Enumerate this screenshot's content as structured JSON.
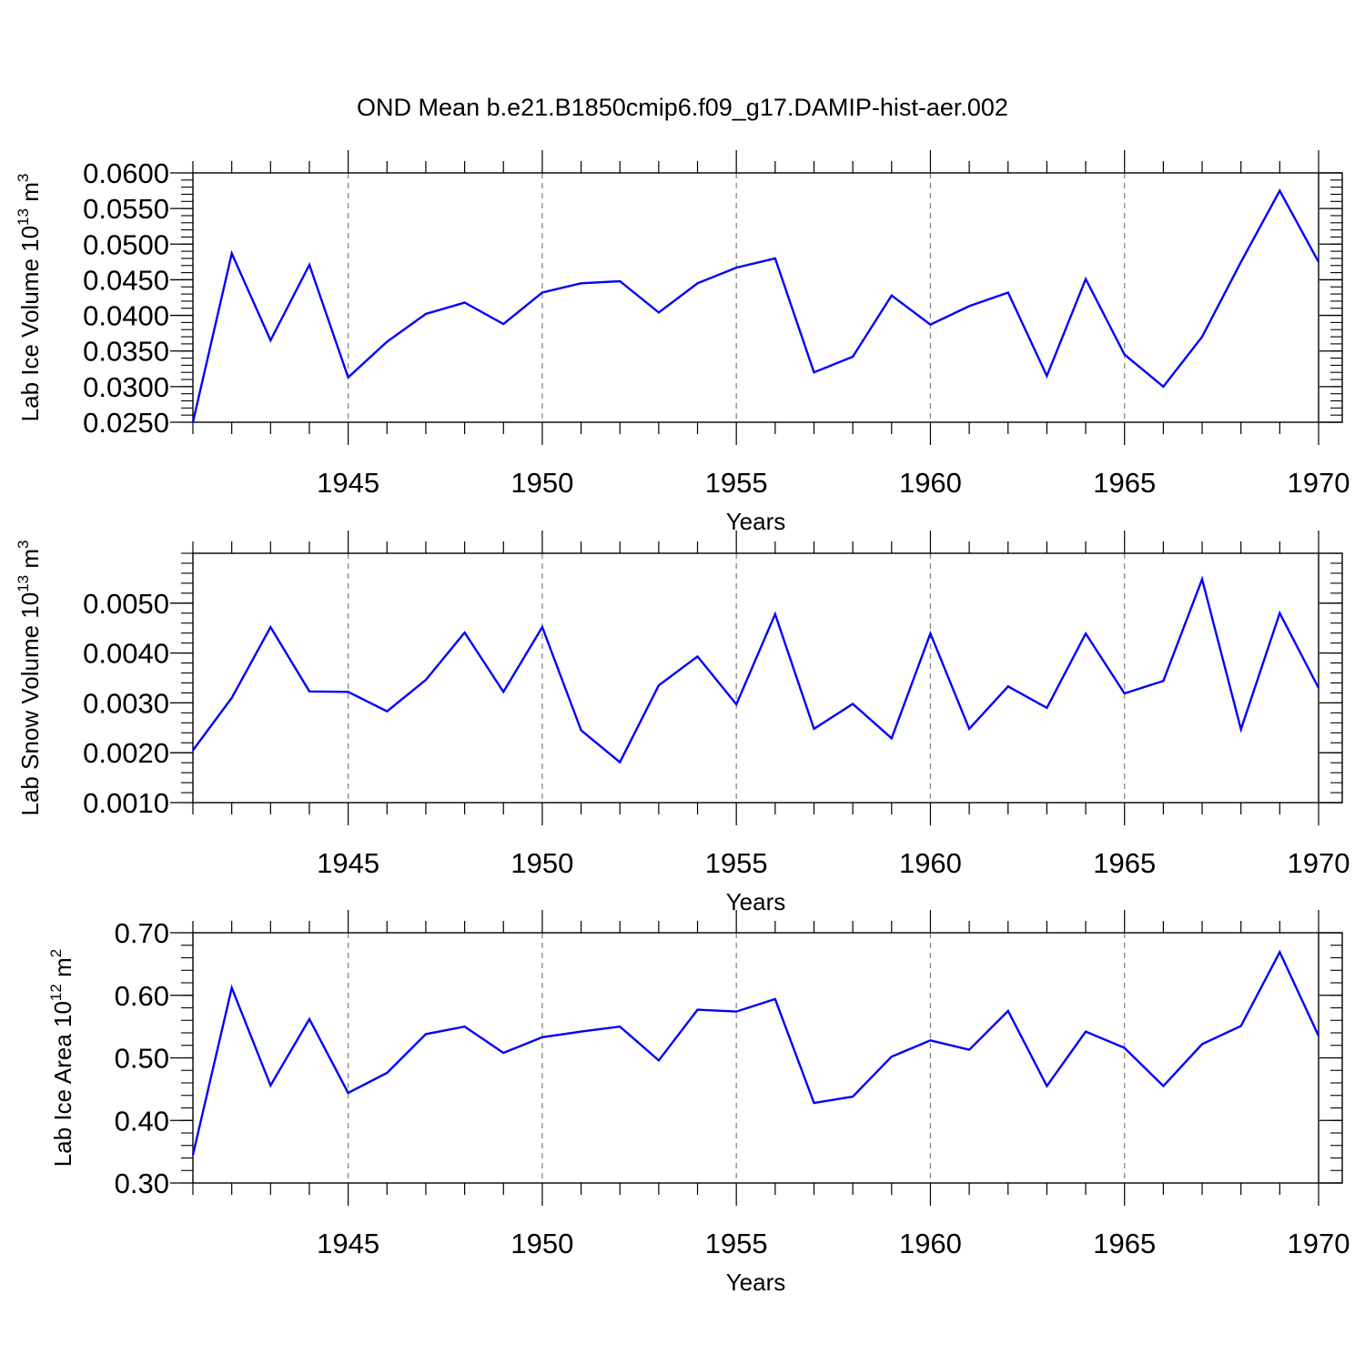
{
  "figure_title": "OND Mean b.e21.B1850cmip6.f09_g17.DAMIP-hist-aer.002",
  "line_color": "#0000ff",
  "chart_data": [
    {
      "type": "line",
      "ylabel": "Lab Ice Volume 10",
      "ylabel_exp": "13",
      "ylabel_unit": " m",
      "ylabel_unit_exp": "3",
      "xlabel": "Years",
      "xlim": [
        1941,
        1970
      ],
      "ylim": [
        0.025,
        0.06
      ],
      "x_ticks": [
        "1945",
        "1950",
        "1955",
        "1960",
        "1965",
        "1970"
      ],
      "y_ticks": [
        "0.0250",
        "0.0300",
        "0.0350",
        "0.0400",
        "0.0450",
        "0.0500",
        "0.0550",
        "0.0600"
      ],
      "grid": "vertical dashed at x ticks",
      "x": [
        1941,
        1942,
        1943,
        1944,
        1945,
        1946,
        1947,
        1948,
        1949,
        1950,
        1951,
        1952,
        1953,
        1954,
        1955,
        1956,
        1957,
        1958,
        1959,
        1960,
        1961,
        1962,
        1963,
        1964,
        1965,
        1966,
        1967,
        1968,
        1969,
        1970
      ],
      "series": [
        {
          "name": "Lab Ice Volume",
          "values": [
            0.025,
            0.0487,
            0.0365,
            0.0471,
            0.0313,
            0.0363,
            0.0402,
            0.0418,
            0.0388,
            0.0432,
            0.0445,
            0.0448,
            0.0404,
            0.0445,
            0.0467,
            0.048,
            0.032,
            0.0342,
            0.0428,
            0.0387,
            0.0413,
            0.0432,
            0.0315,
            0.0451,
            0.0345,
            0.03,
            0.037,
            0.0475,
            0.0575,
            0.0475
          ]
        }
      ]
    },
    {
      "type": "line",
      "ylabel": "Lab Snow Volume 10",
      "ylabel_exp": "13",
      "ylabel_unit": " m",
      "ylabel_unit_exp": "3",
      "xlabel": "Years",
      "xlim": [
        1941,
        1970
      ],
      "ylim": [
        0.001,
        0.006
      ],
      "x_ticks": [
        "1945",
        "1950",
        "1955",
        "1960",
        "1965",
        "1970"
      ],
      "y_ticks": [
        "0.0010",
        "0.0020",
        "0.0030",
        "0.0040",
        "0.0050"
      ],
      "grid": "vertical dashed at x ticks",
      "x": [
        1941,
        1942,
        1943,
        1944,
        1945,
        1946,
        1947,
        1948,
        1949,
        1950,
        1951,
        1952,
        1953,
        1954,
        1955,
        1956,
        1957,
        1958,
        1959,
        1960,
        1961,
        1962,
        1963,
        1964,
        1965,
        1966,
        1967,
        1968,
        1969,
        1970
      ],
      "series": [
        {
          "name": "Lab Snow Volume",
          "values": [
            0.00205,
            0.0031,
            0.00452,
            0.00323,
            0.00322,
            0.00283,
            0.00346,
            0.00441,
            0.00322,
            0.00452,
            0.00245,
            0.00181,
            0.00335,
            0.00393,
            0.00297,
            0.00478,
            0.00248,
            0.00298,
            0.00229,
            0.00439,
            0.00248,
            0.00333,
            0.0029,
            0.00439,
            0.00319,
            0.00344,
            0.00548,
            0.00247,
            0.0048,
            0.0033
          ]
        }
      ]
    },
    {
      "type": "line",
      "ylabel": "Lab Ice Area 10",
      "ylabel_exp": "12",
      "ylabel_unit": " m",
      "ylabel_unit_exp": "2",
      "xlabel": "Years",
      "xlim": [
        1941,
        1970
      ],
      "ylim": [
        0.3,
        0.7
      ],
      "x_ticks": [
        "1945",
        "1950",
        "1955",
        "1960",
        "1965",
        "1970"
      ],
      "y_ticks": [
        "0.30",
        "0.40",
        "0.50",
        "0.60",
        "0.70"
      ],
      "grid": "vertical dashed at x ticks",
      "x": [
        1941,
        1942,
        1943,
        1944,
        1945,
        1946,
        1947,
        1948,
        1949,
        1950,
        1951,
        1952,
        1953,
        1954,
        1955,
        1956,
        1957,
        1958,
        1959,
        1960,
        1961,
        1962,
        1963,
        1964,
        1965,
        1966,
        1967,
        1968,
        1969,
        1970
      ],
      "series": [
        {
          "name": "Lab Ice Area",
          "values": [
            0.345,
            0.612,
            0.456,
            0.562,
            0.444,
            0.476,
            0.538,
            0.55,
            0.508,
            0.533,
            0.542,
            0.55,
            0.496,
            0.577,
            0.574,
            0.594,
            0.428,
            0.438,
            0.502,
            0.528,
            0.513,
            0.575,
            0.455,
            0.542,
            0.516,
            0.455,
            0.522,
            0.551,
            0.669,
            0.535
          ]
        }
      ]
    }
  ]
}
